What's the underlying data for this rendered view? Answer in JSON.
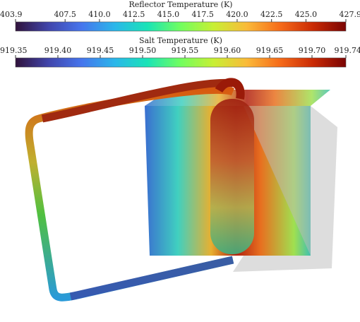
{
  "colorbars": [
    {
      "title": "Reflector Temperature (K)",
      "range": [
        403.9,
        427.9
      ],
      "ticks": [
        403.9,
        407.5,
        {
          "value": 410,
          "label": "410.0"
        },
        412.5,
        {
          "value": 415,
          "label": "415.0"
        },
        417.5,
        {
          "value": 420,
          "label": "420.0"
        },
        422.5,
        {
          "value": 425,
          "label": "425.0"
        },
        427.9
      ]
    },
    {
      "title": "Salt Temperature (K)",
      "range": [
        919.35,
        919.74
      ],
      "ticks": [
        919.35,
        {
          "value": 919.4,
          "label": "919.40"
        },
        919.45,
        {
          "value": 919.5,
          "label": "919.50"
        },
        919.55,
        {
          "value": 919.6,
          "label": "919.60"
        },
        919.65,
        {
          "value": 919.7,
          "label": "919.70"
        },
        919.74
      ]
    }
  ]
}
